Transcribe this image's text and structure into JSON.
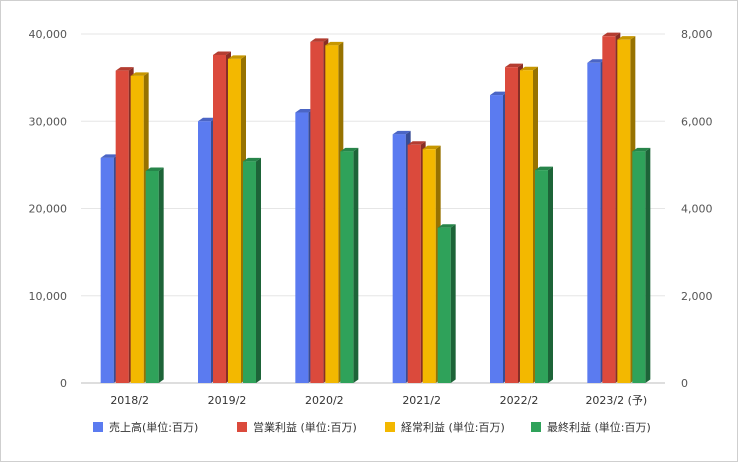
{
  "chart_data": {
    "type": "bar",
    "title": "",
    "xlabel": "",
    "ylabel": "",
    "categories": [
      "2018/2",
      "2019/2",
      "2020/2",
      "2021/2",
      "2022/2",
      "2023/2 (予)"
    ],
    "y_left": {
      "min": 0,
      "max": 40000,
      "ticks": [
        "0",
        "10,000",
        "20,000",
        "30,000",
        "40,000"
      ]
    },
    "y_right": {
      "min": 0,
      "max": 8000,
      "ticks": [
        "0",
        "2,000",
        "4,000",
        "6,000",
        "8,000"
      ]
    },
    "grid": true,
    "legend_position": "bottom",
    "series": [
      {
        "name": "売上高(単位:百万)",
        "axis": "left",
        "color": "#5b7bf0",
        "values": [
          25800,
          30000,
          31000,
          28500,
          33000,
          36700
        ]
      },
      {
        "name": "営業利益 (単位:百万)",
        "axis": "right",
        "color": "#db4a3c",
        "values": [
          7160,
          7520,
          7820,
          5460,
          7240,
          7950
        ]
      },
      {
        "name": "経常利益 (単位:百万)",
        "axis": "right",
        "color": "#f3b800",
        "values": [
          7040,
          7430,
          7740,
          5360,
          7170,
          7870
        ]
      },
      {
        "name": "最終利益 (単位:百万)",
        "axis": "right",
        "color": "#2fa25a",
        "values": [
          4860,
          5080,
          5310,
          3560,
          4880,
          5310
        ]
      }
    ]
  }
}
